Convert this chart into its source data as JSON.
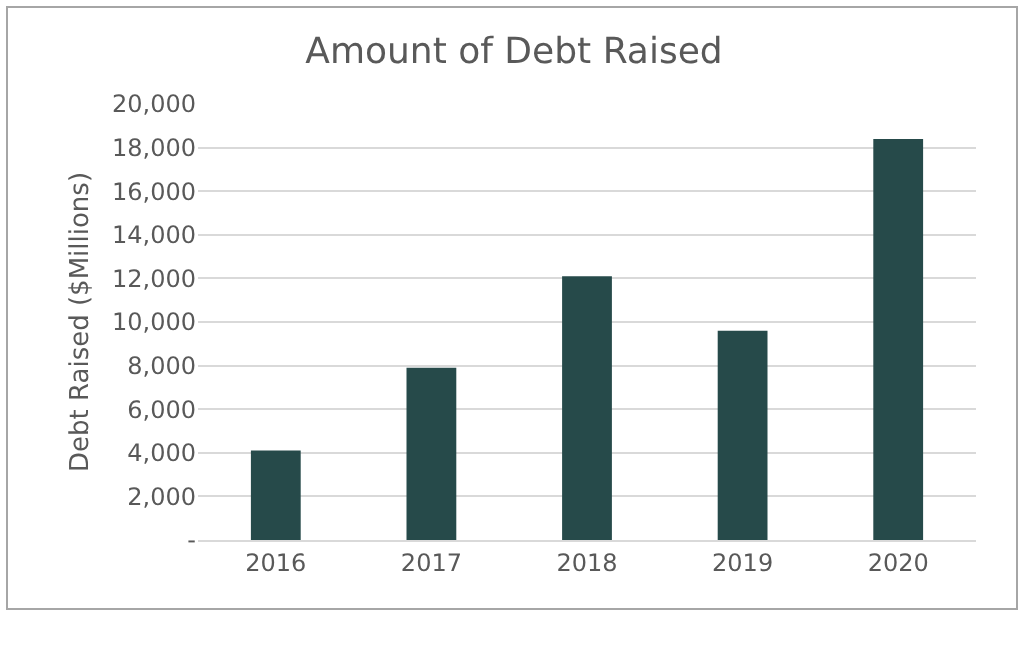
{
  "chart_data": {
    "type": "bar",
    "title": "Amount of Debt Raised",
    "ylabel": "Debt Raised ($Millions)",
    "categories": [
      "2016",
      "2017",
      "2018",
      "2019",
      "2020"
    ],
    "values": [
      4100,
      7900,
      12100,
      9600,
      18400
    ],
    "color": "#264a4a",
    "ylim": [
      0,
      20000
    ],
    "yticks": [
      {
        "value": 0,
        "label": "-"
      },
      {
        "value": 2000,
        "label": "2,000"
      },
      {
        "value": 4000,
        "label": "4,000"
      },
      {
        "value": 6000,
        "label": "6,000"
      },
      {
        "value": 8000,
        "label": "8,000"
      },
      {
        "value": 10000,
        "label": "10,000"
      },
      {
        "value": 12000,
        "label": "12,000"
      },
      {
        "value": 14000,
        "label": "14,000"
      },
      {
        "value": 16000,
        "label": "16,000"
      },
      {
        "value": 18000,
        "label": "18,000"
      },
      {
        "value": 20000,
        "label": "20,000"
      }
    ],
    "grid": "y"
  }
}
